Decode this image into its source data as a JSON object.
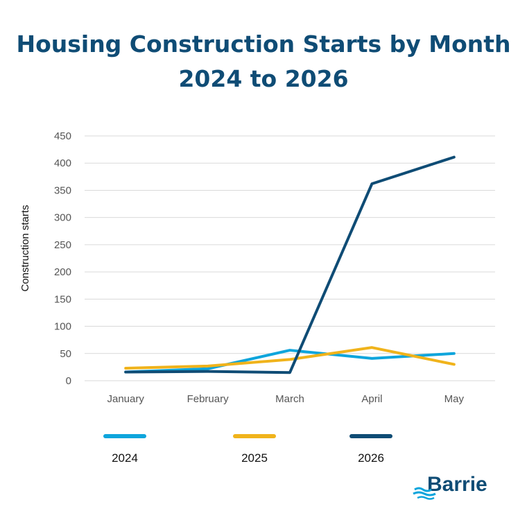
{
  "title_line1": "Housing Construction Starts by Month",
  "title_line2": "2024 to 2026",
  "logo_text": "Barrie",
  "chart_data": {
    "type": "line",
    "categories": [
      "January",
      "February",
      "March",
      "April",
      "May"
    ],
    "series": [
      {
        "name": "2024",
        "values": [
          16,
          22,
          56,
          41,
          50
        ],
        "color": "#0ea5dc"
      },
      {
        "name": "2025",
        "values": [
          23,
          27,
          39,
          61,
          30
        ],
        "color": "#f0b31b"
      },
      {
        "name": "2026",
        "values": [
          16,
          17,
          15,
          362,
          411
        ],
        "color": "#0f4c75"
      }
    ],
    "ylabel": "Construction starts",
    "xlabel": "",
    "ylim": [
      0,
      450
    ],
    "yticks": [
      0,
      50,
      100,
      150,
      200,
      250,
      300,
      350,
      400,
      450
    ],
    "grid": true,
    "legend_position": "bottom"
  }
}
